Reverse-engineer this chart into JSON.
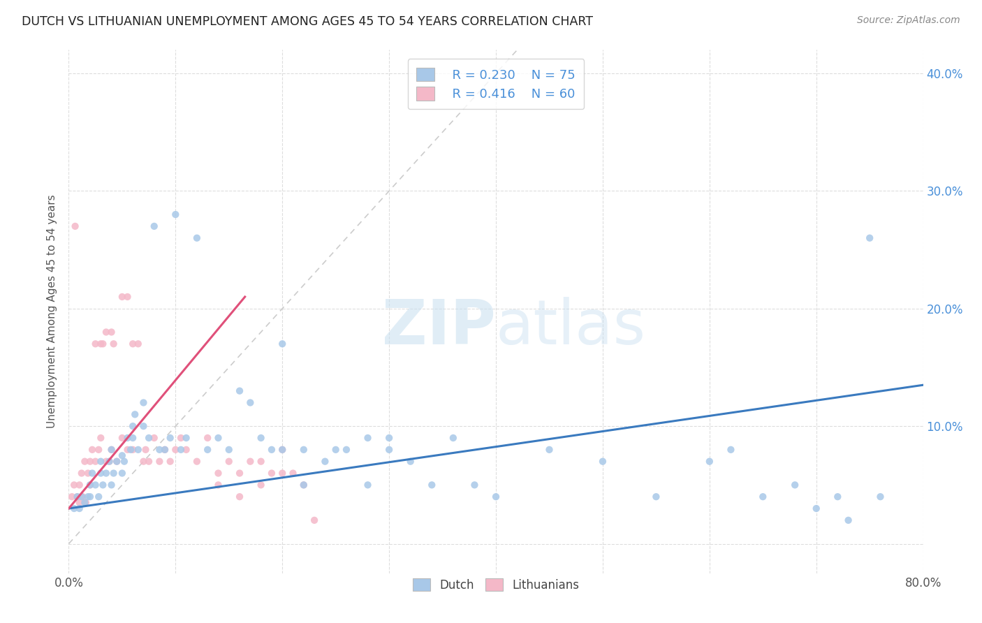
{
  "title": "DUTCH VS LITHUANIAN UNEMPLOYMENT AMONG AGES 45 TO 54 YEARS CORRELATION CHART",
  "source": "Source: ZipAtlas.com",
  "ylabel": "Unemployment Among Ages 45 to 54 years",
  "xlim": [
    0.0,
    0.8
  ],
  "ylim": [
    -0.025,
    0.42
  ],
  "dutch_color": "#a8c8e8",
  "lithuanian_color": "#f4b8c8",
  "dutch_line_color": "#3a7abf",
  "lithuanian_line_color": "#e0507a",
  "diagonal_color": "#cccccc",
  "watermark": "ZIPatlas",
  "legend_R_dutch": "R = 0.230",
  "legend_N_dutch": "N = 75",
  "legend_R_lith": "R = 0.416",
  "legend_N_lith": "N = 60",
  "dutch_scatter_x": [
    0.005,
    0.008,
    0.01,
    0.012,
    0.015,
    0.018,
    0.02,
    0.02,
    0.022,
    0.025,
    0.028,
    0.03,
    0.03,
    0.032,
    0.035,
    0.038,
    0.04,
    0.04,
    0.042,
    0.045,
    0.05,
    0.05,
    0.052,
    0.055,
    0.058,
    0.06,
    0.06,
    0.062,
    0.065,
    0.07,
    0.07,
    0.075,
    0.08,
    0.085,
    0.09,
    0.095,
    0.1,
    0.105,
    0.11,
    0.12,
    0.13,
    0.14,
    0.15,
    0.16,
    0.17,
    0.18,
    0.19,
    0.2,
    0.22,
    0.24,
    0.26,
    0.28,
    0.3,
    0.32,
    0.34,
    0.36,
    0.38,
    0.4,
    0.45,
    0.5,
    0.55,
    0.6,
    0.62,
    0.65,
    0.68,
    0.7,
    0.72,
    0.73,
    0.75,
    0.76,
    0.2,
    0.22,
    0.25,
    0.28,
    0.3
  ],
  "dutch_scatter_y": [
    0.03,
    0.04,
    0.03,
    0.04,
    0.035,
    0.04,
    0.05,
    0.04,
    0.06,
    0.05,
    0.04,
    0.06,
    0.07,
    0.05,
    0.06,
    0.07,
    0.05,
    0.08,
    0.06,
    0.07,
    0.06,
    0.075,
    0.07,
    0.09,
    0.08,
    0.1,
    0.09,
    0.11,
    0.08,
    0.12,
    0.1,
    0.09,
    0.27,
    0.08,
    0.08,
    0.09,
    0.28,
    0.08,
    0.09,
    0.26,
    0.08,
    0.09,
    0.08,
    0.13,
    0.12,
    0.09,
    0.08,
    0.17,
    0.08,
    0.07,
    0.08,
    0.09,
    0.08,
    0.07,
    0.05,
    0.09,
    0.05,
    0.04,
    0.08,
    0.07,
    0.04,
    0.07,
    0.08,
    0.04,
    0.05,
    0.03,
    0.04,
    0.02,
    0.26,
    0.04,
    0.08,
    0.05,
    0.08,
    0.05,
    0.09
  ],
  "lith_scatter_x": [
    0.003,
    0.005,
    0.006,
    0.008,
    0.01,
    0.01,
    0.012,
    0.013,
    0.015,
    0.016,
    0.018,
    0.02,
    0.02,
    0.022,
    0.025,
    0.025,
    0.028,
    0.03,
    0.03,
    0.032,
    0.035,
    0.035,
    0.038,
    0.04,
    0.04,
    0.042,
    0.045,
    0.05,
    0.05,
    0.055,
    0.055,
    0.06,
    0.06,
    0.065,
    0.07,
    0.072,
    0.075,
    0.08,
    0.085,
    0.09,
    0.095,
    0.1,
    0.105,
    0.11,
    0.12,
    0.13,
    0.14,
    0.15,
    0.16,
    0.17,
    0.18,
    0.19,
    0.2,
    0.21,
    0.22,
    0.23,
    0.14,
    0.16,
    0.18,
    0.2
  ],
  "lith_scatter_y": [
    0.04,
    0.05,
    0.27,
    0.04,
    0.05,
    0.035,
    0.06,
    0.04,
    0.07,
    0.035,
    0.06,
    0.05,
    0.07,
    0.08,
    0.07,
    0.17,
    0.08,
    0.17,
    0.09,
    0.17,
    0.07,
    0.18,
    0.07,
    0.18,
    0.08,
    0.17,
    0.07,
    0.21,
    0.09,
    0.21,
    0.08,
    0.17,
    0.08,
    0.17,
    0.07,
    0.08,
    0.07,
    0.09,
    0.07,
    0.08,
    0.07,
    0.08,
    0.09,
    0.08,
    0.07,
    0.09,
    0.05,
    0.07,
    0.06,
    0.07,
    0.05,
    0.06,
    0.08,
    0.06,
    0.05,
    0.02,
    0.06,
    0.04,
    0.07,
    0.06
  ],
  "dutch_line_x": [
    0.0,
    0.8
  ],
  "dutch_line_y": [
    0.03,
    0.135
  ],
  "lith_line_x": [
    0.0,
    0.165
  ],
  "lith_line_y": [
    0.03,
    0.21
  ]
}
